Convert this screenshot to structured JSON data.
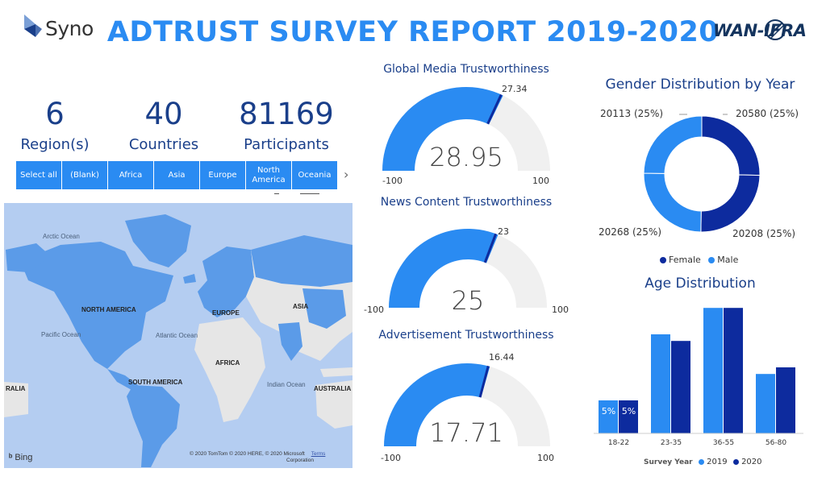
{
  "header": {
    "title": "ADTRUST SURVEY REPORT 2019-2020",
    "logo_left": "Syno",
    "logo_right": "WAN-IFRA"
  },
  "kpis": [
    {
      "value": "6",
      "label": "Region(s)"
    },
    {
      "value": "40",
      "label": "Countries"
    },
    {
      "value": "81169",
      "label": "Participants"
    }
  ],
  "slicer": {
    "buttons": [
      "Select all",
      "(Blank)",
      "Africa",
      "Asia",
      "Europe",
      "North America",
      "Oceania"
    ],
    "next_icon": "chevron-right-icon"
  },
  "map": {
    "region_labels": [
      "NORTH AMERICA",
      "EUROPE",
      "ASIA",
      "AFRICA",
      "SOUTH AMERICA",
      "AUSTRALIA",
      "RALIA"
    ],
    "ocean_labels": [
      "Arctic Ocean",
      "Pacific Ocean",
      "Atlantic Ocean",
      "Indian Ocean"
    ],
    "credit_line1": "© 2020 TomTom © 2020 HERE, © 2020 Microsoft",
    "credit_terms": "Terms",
    "credit_line2": "Corporation",
    "provider": "Bing"
  },
  "gauges": [
    {
      "title": "Global Media Trustworthiness",
      "value": 28.95,
      "value_label": "28.95",
      "target": 27.34,
      "target_label": "27.34",
      "min": -100,
      "max": 100,
      "min_label": "-100",
      "max_label": "100"
    },
    {
      "title": "News Content Trustworthiness",
      "value": 25,
      "value_label": "25",
      "target": 23,
      "target_label": "23",
      "min": -100,
      "max": 100,
      "min_label": "-100",
      "max_label": "100"
    },
    {
      "title": "Advertisement Trustworthiness",
      "value": 17.71,
      "value_label": "17.71",
      "target": 16.44,
      "target_label": "16.44",
      "min": -100,
      "max": 100,
      "min_label": "-100",
      "max_label": "100"
    }
  ],
  "gender": {
    "title": "Gender Distribution by Year",
    "slices": [
      {
        "label": "20580 (25%)",
        "value": 20580,
        "color": "#0d2b9e"
      },
      {
        "label": "20208 (25%)",
        "value": 20208,
        "color": "#0d2b9e"
      },
      {
        "label": "20268 (25%)",
        "value": 20268,
        "color": "#2a8bf2"
      },
      {
        "label": "20113 (25%)",
        "value": 20113,
        "color": "#2a8bf2"
      }
    ],
    "legend": [
      {
        "name": "Female",
        "color": "#0d2b9e"
      },
      {
        "name": "Male",
        "color": "#2a8bf2"
      }
    ]
  },
  "chart_data": {
    "type": "bar",
    "title": "Age Distribution",
    "categories": [
      "18-22",
      "23-35",
      "36-55",
      "56-80"
    ],
    "series": [
      {
        "name": "2019",
        "values": [
          5,
          15,
          19,
          9
        ],
        "color": "#2a8bf2"
      },
      {
        "name": "2020",
        "values": [
          5,
          14,
          19,
          10
        ],
        "color": "#0d2b9e"
      }
    ],
    "data_labels": [
      "5%",
      "5%"
    ],
    "legend_title": "Survey Year",
    "ylim": [
      0,
      20
    ]
  },
  "colors": {
    "accent": "#2a8bf2",
    "dark": "#0d2b9e",
    "text_dark": "#1a3f8a",
    "gauge_bg": "#f0f0f0",
    "map_water": "#b4cdf1",
    "map_land_highlight": "#5b9be8"
  }
}
